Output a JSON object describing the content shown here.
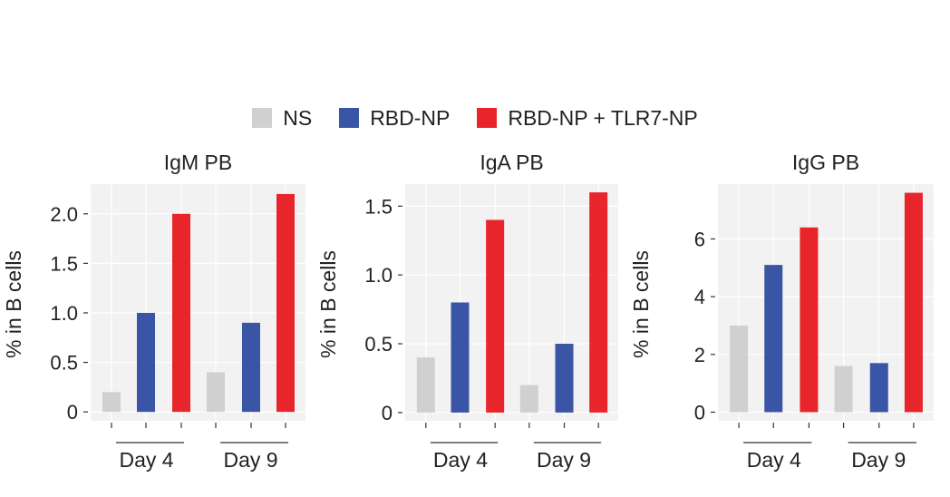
{
  "legend": [
    {
      "label": "NS",
      "color": "#d0d0d0"
    },
    {
      "label": "RBD-NP",
      "color": "#3a55a5"
    },
    {
      "label": "RBD-NP + TLR7-NP",
      "color": "#e8252b"
    }
  ],
  "chart_data": [
    {
      "type": "bar",
      "title": "IgM PB",
      "ylabel": "% in B cells",
      "groups": [
        "Day 4",
        "Day 9"
      ],
      "ylim": [
        -0.09,
        2.3
      ],
      "yticks": [
        0,
        0.5,
        1.0,
        1.5,
        2.0
      ],
      "ytick_labels": [
        "0",
        "0.5",
        "1.0",
        "1.5",
        "2.0"
      ],
      "series": [
        {
          "name": "NS",
          "values": [
            0.2,
            0.4
          ]
        },
        {
          "name": "RBD-NP",
          "values": [
            1.0,
            0.9
          ]
        },
        {
          "name": "RBD-NP + TLR7-NP",
          "values": [
            2.0,
            2.2
          ]
        }
      ]
    },
    {
      "type": "bar",
      "title": "IgA PB",
      "ylabel": "% in B cells",
      "groups": [
        "Day 4",
        "Day 9"
      ],
      "ylim": [
        -0.06,
        1.66
      ],
      "yticks": [
        0,
        0.5,
        1.0,
        1.5
      ],
      "ytick_labels": [
        "0",
        "0.5",
        "1.0",
        "1.5"
      ],
      "series": [
        {
          "name": "NS",
          "values": [
            0.4,
            0.2
          ]
        },
        {
          "name": "RBD-NP",
          "values": [
            0.8,
            0.5
          ]
        },
        {
          "name": "RBD-NP + TLR7-NP",
          "values": [
            1.4,
            1.6
          ]
        }
      ]
    },
    {
      "type": "bar",
      "title": "IgG PB",
      "ylabel": "% in B cells",
      "groups": [
        "Day 4",
        "Day 9"
      ],
      "ylim": [
        -0.3,
        7.9
      ],
      "yticks": [
        0,
        2,
        4,
        6
      ],
      "ytick_labels": [
        "0",
        "2",
        "4",
        "6"
      ],
      "series": [
        {
          "name": "NS",
          "values": [
            3.0,
            1.6
          ]
        },
        {
          "name": "RBD-NP",
          "values": [
            5.1,
            1.7
          ]
        },
        {
          "name": "RBD-NP + TLR7-NP",
          "values": [
            6.4,
            7.6
          ]
        }
      ]
    }
  ]
}
